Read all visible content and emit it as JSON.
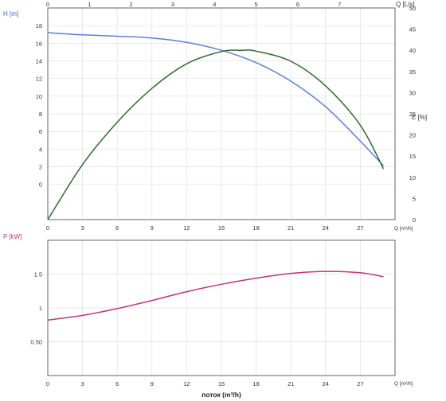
{
  "colors": {
    "head": "#5b7fd6",
    "efficiency": "#2e6b2e",
    "power": "#c2357a",
    "h_label": "#3a64c8",
    "p_label": "#c2357a"
  },
  "axis_labels": {
    "h": "H [m]",
    "q_ls": "Q [L/s]",
    "e": "E [%]",
    "q_m3h_top": "Q [m³/h]",
    "p": "P [kW]",
    "q_m3h_bottom": "Q [m³/h]",
    "x_title": "поток (m³/h)"
  },
  "chart_data": [
    {
      "type": "line",
      "panel": "top",
      "x_axis": {
        "label": "Q [m³/h]",
        "range": [
          0,
          30
        ],
        "ticks": [
          0,
          3,
          6,
          9,
          12,
          15,
          18,
          21,
          24,
          27
        ],
        "tick_labels": [
          "0",
          "3",
          "6",
          "9",
          "12",
          "15",
          "18",
          "21",
          "24",
          "27"
        ]
      },
      "x_axis_top": {
        "label": "Q [L/s]",
        "unit": "L/s",
        "ticks": [
          0,
          1,
          2,
          3,
          4,
          5,
          6,
          7
        ],
        "tick_labels": [
          "0",
          "1",
          "2",
          "3",
          "4",
          "5",
          "6",
          "7"
        ]
      },
      "y_axis_left": {
        "label": "H [m]",
        "range": [
          -4,
          20
        ],
        "ticks": [
          0,
          2,
          4,
          6,
          8,
          10,
          12,
          14,
          16,
          18
        ],
        "tick_labels": [
          "0",
          "2",
          "4",
          "6",
          "8",
          "10",
          "12",
          "14",
          "16",
          "18"
        ]
      },
      "y_axis_right": {
        "label": "E [%]",
        "range": [
          0,
          50
        ],
        "ticks": [
          0,
          5,
          10,
          15,
          20,
          25,
          30,
          35,
          40,
          45,
          50
        ],
        "tick_labels": [
          "0",
          "5",
          "10",
          "15",
          "20",
          "25",
          "30",
          "35",
          "40",
          "45",
          "50"
        ]
      },
      "grid": true,
      "series": [
        {
          "key": "head",
          "axis": "left",
          "x": [
            0,
            3,
            6,
            9,
            12,
            15,
            18,
            21,
            24,
            27,
            29
          ],
          "y": [
            17.2,
            16.95,
            16.8,
            16.6,
            16.1,
            15.2,
            13.8,
            11.7,
            8.8,
            4.9,
            2.1
          ]
        },
        {
          "key": "efficiency",
          "axis": "right",
          "x": [
            0,
            3,
            6,
            9,
            12,
            15,
            16.7,
            18,
            21,
            24,
            27,
            29
          ],
          "y": [
            0,
            13,
            23,
            31,
            36.8,
            39.7,
            40,
            39.8,
            37.4,
            31.6,
            22.3,
            12
          ]
        }
      ]
    },
    {
      "type": "line",
      "panel": "bottom",
      "x_axis": {
        "label": "Q [m³/h]",
        "title": "поток (m³/h)",
        "range": [
          0,
          30
        ],
        "ticks": [
          0,
          3,
          6,
          9,
          12,
          15,
          18,
          21,
          24,
          27
        ],
        "tick_labels": [
          "0",
          "3",
          "6",
          "9",
          "12",
          "15",
          "18",
          "21",
          "24",
          "27"
        ]
      },
      "y_axis": {
        "label": "P [kW]",
        "range": [
          0,
          2
        ],
        "ticks": [
          0.5,
          1,
          1.5
        ],
        "tick_labels": [
          "0.50",
          "1",
          "1.5"
        ]
      },
      "grid": true,
      "series": [
        {
          "key": "power",
          "x": [
            0,
            3,
            6,
            9,
            12,
            15,
            18,
            21,
            24,
            27,
            29
          ],
          "y": [
            0.82,
            0.89,
            0.99,
            1.11,
            1.24,
            1.35,
            1.44,
            1.51,
            1.54,
            1.52,
            1.46
          ]
        }
      ]
    }
  ]
}
